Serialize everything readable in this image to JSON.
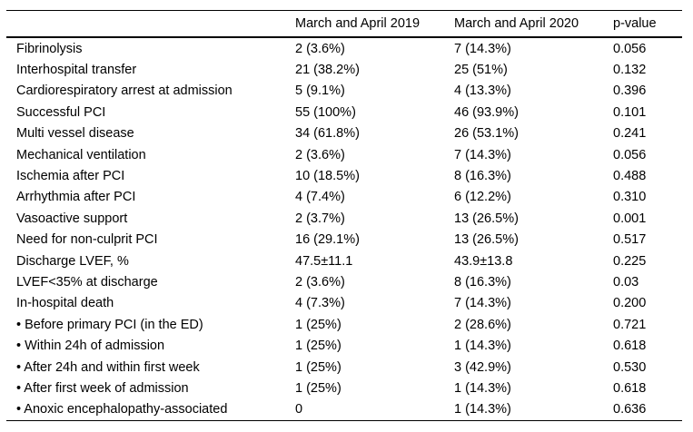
{
  "table": {
    "columns": [
      "",
      "March and April 2019",
      "March and April 2020",
      "p-value"
    ],
    "rows": [
      {
        "label": "Fibrinolysis",
        "y2019": "2 (3.6%)",
        "y2020": "7 (14.3%)",
        "p": "0.056"
      },
      {
        "label": "Interhospital transfer",
        "y2019": "21 (38.2%)",
        "y2020": "25 (51%)",
        "p": "0.132"
      },
      {
        "label": "Cardiorespiratory arrest at admission",
        "y2019": "5 (9.1%)",
        "y2020": "4 (13.3%)",
        "p": "0.396"
      },
      {
        "label": "Successful PCI",
        "y2019": "55 (100%)",
        "y2020": "46 (93.9%)",
        "p": "0.101"
      },
      {
        "label": "Multi vessel disease",
        "y2019": "34 (61.8%)",
        "y2020": "26 (53.1%)",
        "p": "0.241"
      },
      {
        "label": "Mechanical ventilation",
        "y2019": "2 (3.6%)",
        "y2020": "7 (14.3%)",
        "p": "0.056"
      },
      {
        "label": "Ischemia after PCI",
        "y2019": "10 (18.5%)",
        "y2020": "8 (16.3%)",
        "p": "0.488"
      },
      {
        "label": "Arrhythmia after PCI",
        "y2019": "4 (7.4%)",
        "y2020": "6 (12.2%)",
        "p": "0.310"
      },
      {
        "label": "Vasoactive support",
        "y2019": "2 (3.7%)",
        "y2020": "13 (26.5%)",
        "p": "0.001"
      },
      {
        "label": "Need for non-culprit PCI",
        "y2019": "16 (29.1%)",
        "y2020": "13 (26.5%)",
        "p": "0.517"
      },
      {
        "label": "Discharge LVEF, %",
        "y2019": "47.5±11.1",
        "y2020": "43.9±13.8",
        "p": "0.225"
      },
      {
        "label": "LVEF<35% at discharge",
        "y2019": "2 (3.6%)",
        "y2020": "8 (16.3%)",
        "p": "0.03"
      },
      {
        "label": "In-hospital death",
        "y2019": "4 (7.3%)",
        "y2020": "7 (14.3%)",
        "p": "0.200"
      },
      {
        "label": "• Before primary PCI (in the ED)",
        "y2019": "1 (25%)",
        "y2020": "2 (28.6%)",
        "p": "0.721"
      },
      {
        "label": "• Within 24h of admission",
        "y2019": "1 (25%)",
        "y2020": "1 (14.3%)",
        "p": "0.618"
      },
      {
        "label": "• After 24h and within first week",
        "y2019": "1 (25%)",
        "y2020": "3 (42.9%)",
        "p": "0.530"
      },
      {
        "label": "• After first week of admission",
        "y2019": "1 (25%)",
        "y2020": "1 (14.3%)",
        "p": "0.618"
      },
      {
        "label": "• Anoxic encephalopathy-associated",
        "y2019": "0",
        "y2020": "1 (14.3%)",
        "p": "0.636"
      }
    ]
  }
}
